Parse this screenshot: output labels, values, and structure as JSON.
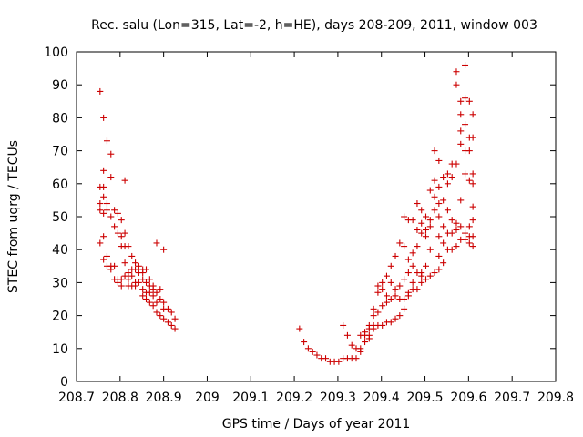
{
  "chart_data": {
    "type": "scatter",
    "title": "Rec. salu (Lon=315, Lat=-2, h=HE), days 208-209, 2011, window 003",
    "xlabel": "GPS time / Days of year 2011",
    "ylabel": "STEC from uqrg / TECUs",
    "xlim": [
      208.7,
      209.8
    ],
    "ylim": [
      0,
      100
    ],
    "xticks": [
      "208.7",
      "208.8",
      "208.9",
      "209",
      "209.1",
      "209.2",
      "209.3",
      "209.4",
      "209.5",
      "209.6",
      "209.7",
      "209.8"
    ],
    "yticks": [
      "0",
      "10",
      "20",
      "30",
      "40",
      "50",
      "60",
      "70",
      "80",
      "90",
      "100"
    ],
    "grid": false,
    "legend": "none",
    "marker": "+",
    "color": "#cc0000",
    "series": [
      {
        "points": [
          [
            208.754,
            88
          ],
          [
            208.754,
            59
          ],
          [
            208.754,
            54
          ],
          [
            208.754,
            52
          ],
          [
            208.754,
            42
          ],
          [
            208.762,
            80
          ],
          [
            208.762,
            64
          ],
          [
            208.762,
            59
          ],
          [
            208.762,
            56
          ],
          [
            208.762,
            51
          ],
          [
            208.762,
            44
          ],
          [
            208.762,
            37
          ],
          [
            208.77,
            73
          ],
          [
            208.77,
            54
          ],
          [
            208.77,
            52
          ],
          [
            208.77,
            38
          ],
          [
            208.77,
            35
          ],
          [
            208.779,
            69
          ],
          [
            208.779,
            62
          ],
          [
            208.779,
            50
          ],
          [
            208.779,
            35
          ],
          [
            208.779,
            34
          ],
          [
            208.787,
            52
          ],
          [
            208.787,
            47
          ],
          [
            208.787,
            35
          ],
          [
            208.787,
            31
          ],
          [
            208.795,
            51
          ],
          [
            208.795,
            45
          ],
          [
            208.795,
            31
          ],
          [
            208.795,
            30
          ],
          [
            208.803,
            49
          ],
          [
            208.803,
            44
          ],
          [
            208.803,
            41
          ],
          [
            208.803,
            31
          ],
          [
            208.803,
            29
          ],
          [
            208.811,
            61
          ],
          [
            208.811,
            45
          ],
          [
            208.811,
            41
          ],
          [
            208.811,
            36
          ],
          [
            208.811,
            32
          ],
          [
            208.819,
            41
          ],
          [
            208.819,
            33
          ],
          [
            208.819,
            31
          ],
          [
            208.819,
            29
          ],
          [
            208.827,
            38
          ],
          [
            208.827,
            34
          ],
          [
            208.827,
            32
          ],
          [
            208.827,
            29
          ],
          [
            208.835,
            36
          ],
          [
            208.835,
            34
          ],
          [
            208.835,
            30
          ],
          [
            208.835,
            29
          ],
          [
            208.843,
            35
          ],
          [
            208.843,
            33
          ],
          [
            208.843,
            30
          ],
          [
            208.852,
            34
          ],
          [
            208.852,
            33
          ],
          [
            208.852,
            31
          ],
          [
            208.852,
            28
          ],
          [
            208.852,
            26
          ],
          [
            208.86,
            34
          ],
          [
            208.86,
            30
          ],
          [
            208.86,
            27
          ],
          [
            208.86,
            25
          ],
          [
            208.868,
            31
          ],
          [
            208.868,
            29
          ],
          [
            208.868,
            27
          ],
          [
            208.868,
            24
          ],
          [
            208.876,
            29
          ],
          [
            208.876,
            28
          ],
          [
            208.876,
            26
          ],
          [
            208.876,
            23
          ],
          [
            208.884,
            42
          ],
          [
            208.884,
            27
          ],
          [
            208.884,
            24
          ],
          [
            208.884,
            21
          ],
          [
            208.892,
            28
          ],
          [
            208.892,
            25
          ],
          [
            208.892,
            20
          ],
          [
            208.9,
            40
          ],
          [
            208.9,
            24
          ],
          [
            208.9,
            22
          ],
          [
            208.9,
            19
          ],
          [
            208.91,
            22
          ],
          [
            208.91,
            18
          ],
          [
            208.918,
            21
          ],
          [
            208.918,
            17
          ],
          [
            208.926,
            19
          ],
          [
            208.926,
            16
          ],
          [
            209.212,
            16
          ],
          [
            209.222,
            12
          ],
          [
            209.232,
            10
          ],
          [
            209.242,
            9
          ],
          [
            209.252,
            8
          ],
          [
            209.262,
            7
          ],
          [
            209.272,
            7
          ],
          [
            209.282,
            6
          ],
          [
            209.292,
            6
          ],
          [
            209.302,
            6
          ],
          [
            209.312,
            17
          ],
          [
            209.312,
            7
          ],
          [
            209.322,
            14
          ],
          [
            209.322,
            7
          ],
          [
            209.332,
            11
          ],
          [
            209.332,
            7
          ],
          [
            209.342,
            10
          ],
          [
            209.342,
            7
          ],
          [
            209.352,
            14
          ],
          [
            209.352,
            10
          ],
          [
            209.352,
            9
          ],
          [
            209.362,
            15
          ],
          [
            209.362,
            14
          ],
          [
            209.362,
            12
          ],
          [
            209.372,
            17
          ],
          [
            209.372,
            16
          ],
          [
            209.372,
            14
          ],
          [
            209.372,
            13
          ],
          [
            209.382,
            22
          ],
          [
            209.382,
            20
          ],
          [
            209.382,
            17
          ],
          [
            209.382,
            16
          ],
          [
            209.392,
            29
          ],
          [
            209.392,
            27
          ],
          [
            209.392,
            21
          ],
          [
            209.392,
            17
          ],
          [
            209.402,
            30
          ],
          [
            209.402,
            28
          ],
          [
            209.402,
            23
          ],
          [
            209.402,
            17
          ],
          [
            209.412,
            32
          ],
          [
            209.412,
            26
          ],
          [
            209.412,
            24
          ],
          [
            209.412,
            18
          ],
          [
            209.422,
            35
          ],
          [
            209.422,
            30
          ],
          [
            209.422,
            25
          ],
          [
            209.422,
            18
          ],
          [
            209.432,
            38
          ],
          [
            209.432,
            28
          ],
          [
            209.432,
            26
          ],
          [
            209.432,
            19
          ],
          [
            209.442,
            42
          ],
          [
            209.442,
            29
          ],
          [
            209.442,
            25
          ],
          [
            209.442,
            20
          ],
          [
            209.452,
            41
          ],
          [
            209.452,
            50
          ],
          [
            209.452,
            31
          ],
          [
            209.452,
            25
          ],
          [
            209.452,
            22
          ],
          [
            209.462,
            49
          ],
          [
            209.462,
            37
          ],
          [
            209.462,
            33
          ],
          [
            209.462,
            27
          ],
          [
            209.462,
            26
          ],
          [
            209.472,
            49
          ],
          [
            209.472,
            39
          ],
          [
            209.472,
            35
          ],
          [
            209.472,
            30
          ],
          [
            209.472,
            28
          ],
          [
            209.482,
            54
          ],
          [
            209.482,
            46
          ],
          [
            209.482,
            41
          ],
          [
            209.482,
            33
          ],
          [
            209.482,
            28
          ],
          [
            209.492,
            52
          ],
          [
            209.492,
            48
          ],
          [
            209.492,
            45
          ],
          [
            209.492,
            33
          ],
          [
            209.492,
            32
          ],
          [
            209.492,
            30
          ],
          [
            209.502,
            50
          ],
          [
            209.502,
            46
          ],
          [
            209.502,
            44
          ],
          [
            209.502,
            35
          ],
          [
            209.502,
            31
          ],
          [
            209.512,
            58
          ],
          [
            209.512,
            49
          ],
          [
            209.512,
            47
          ],
          [
            209.512,
            40
          ],
          [
            209.512,
            32
          ],
          [
            209.522,
            70
          ],
          [
            209.522,
            61
          ],
          [
            209.522,
            56
          ],
          [
            209.522,
            52
          ],
          [
            209.522,
            33
          ],
          [
            209.532,
            67
          ],
          [
            209.532,
            59
          ],
          [
            209.532,
            54
          ],
          [
            209.532,
            50
          ],
          [
            209.532,
            44
          ],
          [
            209.532,
            38
          ],
          [
            209.532,
            34
          ],
          [
            209.542,
            62
          ],
          [
            209.542,
            55
          ],
          [
            209.542,
            47
          ],
          [
            209.542,
            42
          ],
          [
            209.542,
            36
          ],
          [
            209.552,
            63
          ],
          [
            209.552,
            60
          ],
          [
            209.552,
            52
          ],
          [
            209.552,
            45
          ],
          [
            209.552,
            40
          ],
          [
            209.562,
            66
          ],
          [
            209.562,
            62
          ],
          [
            209.562,
            49
          ],
          [
            209.562,
            45
          ],
          [
            209.562,
            40
          ],
          [
            209.572,
            94
          ],
          [
            209.572,
            90
          ],
          [
            209.572,
            66
          ],
          [
            209.572,
            48
          ],
          [
            209.572,
            46
          ],
          [
            209.572,
            41
          ],
          [
            209.582,
            85
          ],
          [
            209.582,
            81
          ],
          [
            209.582,
            76
          ],
          [
            209.582,
            72
          ],
          [
            209.582,
            55
          ],
          [
            209.582,
            47
          ],
          [
            209.582,
            43
          ],
          [
            209.592,
            96
          ],
          [
            209.592,
            86
          ],
          [
            209.592,
            78
          ],
          [
            209.592,
            70
          ],
          [
            209.592,
            63
          ],
          [
            209.592,
            45
          ],
          [
            209.592,
            43
          ],
          [
            209.602,
            85
          ],
          [
            209.602,
            74
          ],
          [
            209.602,
            70
          ],
          [
            209.602,
            61
          ],
          [
            209.602,
            47
          ],
          [
            209.602,
            44
          ],
          [
            209.602,
            42
          ],
          [
            209.61,
            81
          ],
          [
            209.61,
            74
          ],
          [
            209.61,
            63
          ],
          [
            209.61,
            60
          ],
          [
            209.61,
            53
          ],
          [
            209.61,
            49
          ],
          [
            209.61,
            44
          ],
          [
            209.61,
            41
          ]
        ]
      }
    ]
  }
}
